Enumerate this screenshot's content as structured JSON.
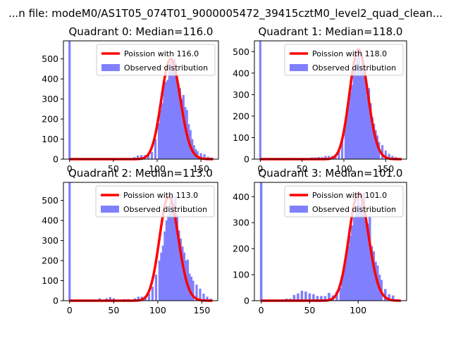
{
  "chart_data": {
    "type": "histogram",
    "suptitle": "...n file: modeM0/AS1T05_074T01_9000005472_39415cztM0_level2_quad_clean...",
    "panels": [
      {
        "title": "Quadrant 0: Median=116.0",
        "median": 116.0,
        "xlim": [
          -7,
          170
        ],
        "ylim": [
          0,
          590
        ],
        "xticks": [
          0,
          50,
          100,
          150
        ],
        "yticks": [
          0,
          100,
          200,
          300,
          400,
          500
        ],
        "legend_line": "Poission with 116.0",
        "legend_bar": "Observed distribution",
        "bins": [
          [
            0,
            590
          ],
          [
            2,
            3
          ],
          [
            26,
            3
          ],
          [
            30,
            3
          ],
          [
            34,
            3
          ],
          [
            38,
            5
          ],
          [
            42,
            5
          ],
          [
            46,
            5
          ],
          [
            50,
            5
          ],
          [
            54,
            5
          ],
          [
            58,
            3
          ],
          [
            62,
            3
          ],
          [
            66,
            3
          ],
          [
            70,
            5
          ],
          [
            74,
            10
          ],
          [
            78,
            18
          ],
          [
            82,
            20
          ],
          [
            86,
            20
          ],
          [
            90,
            22
          ],
          [
            94,
            35
          ],
          [
            98,
            100
          ],
          [
            102,
            180
          ],
          [
            104,
            245
          ],
          [
            106,
            280
          ],
          [
            108,
            380
          ],
          [
            110,
            385
          ],
          [
            112,
            395
          ],
          [
            114,
            440
          ],
          [
            116,
            490
          ],
          [
            118,
            475
          ],
          [
            120,
            500
          ],
          [
            122,
            415
          ],
          [
            124,
            375
          ],
          [
            126,
            355
          ],
          [
            128,
            300
          ],
          [
            130,
            320
          ],
          [
            132,
            260
          ],
          [
            134,
            245
          ],
          [
            136,
            175
          ],
          [
            138,
            145
          ],
          [
            140,
            100
          ],
          [
            142,
            70
          ],
          [
            144,
            50
          ],
          [
            146,
            40
          ],
          [
            150,
            30
          ],
          [
            154,
            25
          ],
          [
            158,
            12
          ],
          [
            162,
            8
          ]
        ]
      },
      {
        "title": "Quadrant 1: Median=118.0",
        "median": 118.0,
        "xlim": [
          -7,
          175
        ],
        "ylim": [
          0,
          550
        ],
        "xticks": [
          0,
          50,
          100,
          150
        ],
        "yticks": [
          0,
          100,
          200,
          300,
          400,
          500
        ],
        "legend_line": "Poission with 118.0",
        "legend_bar": "Observed distribution",
        "bins": [
          [
            0,
            550
          ],
          [
            2,
            3
          ],
          [
            30,
            3
          ],
          [
            34,
            3
          ],
          [
            38,
            3
          ],
          [
            42,
            3
          ],
          [
            46,
            3
          ],
          [
            50,
            5
          ],
          [
            54,
            5
          ],
          [
            58,
            5
          ],
          [
            62,
            8
          ],
          [
            66,
            8
          ],
          [
            70,
            10
          ],
          [
            74,
            10
          ],
          [
            78,
            15
          ],
          [
            82,
            15
          ],
          [
            86,
            15
          ],
          [
            90,
            22
          ],
          [
            94,
            45
          ],
          [
            98,
            85
          ],
          [
            102,
            155
          ],
          [
            104,
            220
          ],
          [
            106,
            275
          ],
          [
            108,
            310
          ],
          [
            110,
            345
          ],
          [
            112,
            410
          ],
          [
            114,
            435
          ],
          [
            116,
            470
          ],
          [
            118,
            510
          ],
          [
            120,
            435
          ],
          [
            122,
            450
          ],
          [
            124,
            420
          ],
          [
            126,
            380
          ],
          [
            128,
            290
          ],
          [
            130,
            330
          ],
          [
            132,
            260
          ],
          [
            134,
            195
          ],
          [
            136,
            165
          ],
          [
            138,
            135
          ],
          [
            140,
            110
          ],
          [
            142,
            80
          ],
          [
            146,
            65
          ],
          [
            150,
            40
          ],
          [
            154,
            25
          ],
          [
            158,
            15
          ],
          [
            162,
            10
          ],
          [
            166,
            5
          ]
        ]
      },
      {
        "title": "Quadrant 2: Median=113.0",
        "median": 113.0,
        "xlim": [
          -7,
          168
        ],
        "ylim": [
          0,
          590
        ],
        "xticks": [
          0,
          50,
          100,
          150
        ],
        "yticks": [
          0,
          100,
          200,
          300,
          400,
          500
        ],
        "legend_line": "Poission with 113.0",
        "legend_bar": "Observed distribution",
        "bins": [
          [
            0,
            590
          ],
          [
            2,
            3
          ],
          [
            34,
            12
          ],
          [
            38,
            5
          ],
          [
            42,
            12
          ],
          [
            46,
            18
          ],
          [
            50,
            12
          ],
          [
            54,
            5
          ],
          [
            58,
            5
          ],
          [
            62,
            8
          ],
          [
            66,
            8
          ],
          [
            70,
            5
          ],
          [
            74,
            12
          ],
          [
            78,
            20
          ],
          [
            82,
            20
          ],
          [
            86,
            20
          ],
          [
            90,
            35
          ],
          [
            94,
            70
          ],
          [
            98,
            130
          ],
          [
            102,
            200
          ],
          [
            104,
            240
          ],
          [
            106,
            275
          ],
          [
            108,
            345
          ],
          [
            110,
            400
          ],
          [
            112,
            430
          ],
          [
            114,
            490
          ],
          [
            116,
            520
          ],
          [
            118,
            480
          ],
          [
            120,
            520
          ],
          [
            122,
            430
          ],
          [
            124,
            350
          ],
          [
            126,
            310
          ],
          [
            128,
            270
          ],
          [
            130,
            240
          ],
          [
            132,
            200
          ],
          [
            134,
            205
          ],
          [
            136,
            135
          ],
          [
            138,
            120
          ],
          [
            140,
            100
          ],
          [
            144,
            80
          ],
          [
            148,
            60
          ],
          [
            152,
            35
          ],
          [
            156,
            20
          ],
          [
            160,
            10
          ]
        ]
      },
      {
        "title": "Quadrant 3: Median=101.0",
        "median": 101.0,
        "xlim": [
          -7,
          150
        ],
        "ylim": [
          0,
          455
        ],
        "xticks": [
          0,
          50,
          100
        ],
        "yticks": [
          0,
          100,
          200,
          300,
          400
        ],
        "legend_line": "Poission with 101.0",
        "legend_bar": "Observed distribution",
        "bins": [
          [
            0,
            455
          ],
          [
            2,
            3
          ],
          [
            14,
            3
          ],
          [
            18,
            3
          ],
          [
            22,
            5
          ],
          [
            26,
            8
          ],
          [
            30,
            8
          ],
          [
            34,
            22
          ],
          [
            38,
            28
          ],
          [
            42,
            38
          ],
          [
            46,
            35
          ],
          [
            50,
            28
          ],
          [
            54,
            25
          ],
          [
            58,
            18
          ],
          [
            62,
            18
          ],
          [
            66,
            18
          ],
          [
            70,
            30
          ],
          [
            74,
            20
          ],
          [
            78,
            35
          ],
          [
            82,
            50
          ],
          [
            84,
            95
          ],
          [
            86,
            140
          ],
          [
            88,
            175
          ],
          [
            90,
            210
          ],
          [
            92,
            250
          ],
          [
            94,
            290
          ],
          [
            96,
            320
          ],
          [
            98,
            355
          ],
          [
            100,
            400
          ],
          [
            102,
            370
          ],
          [
            104,
            390
          ],
          [
            106,
            415
          ],
          [
            108,
            330
          ],
          [
            110,
            295
          ],
          [
            112,
            325
          ],
          [
            114,
            210
          ],
          [
            116,
            190
          ],
          [
            118,
            150
          ],
          [
            120,
            135
          ],
          [
            122,
            100
          ],
          [
            124,
            80
          ],
          [
            128,
            45
          ],
          [
            132,
            25
          ],
          [
            136,
            20
          ],
          [
            140,
            5
          ]
        ]
      }
    ],
    "colors": {
      "bars": "#8080ff",
      "line": "#ff0000",
      "axis": "#000000"
    }
  }
}
